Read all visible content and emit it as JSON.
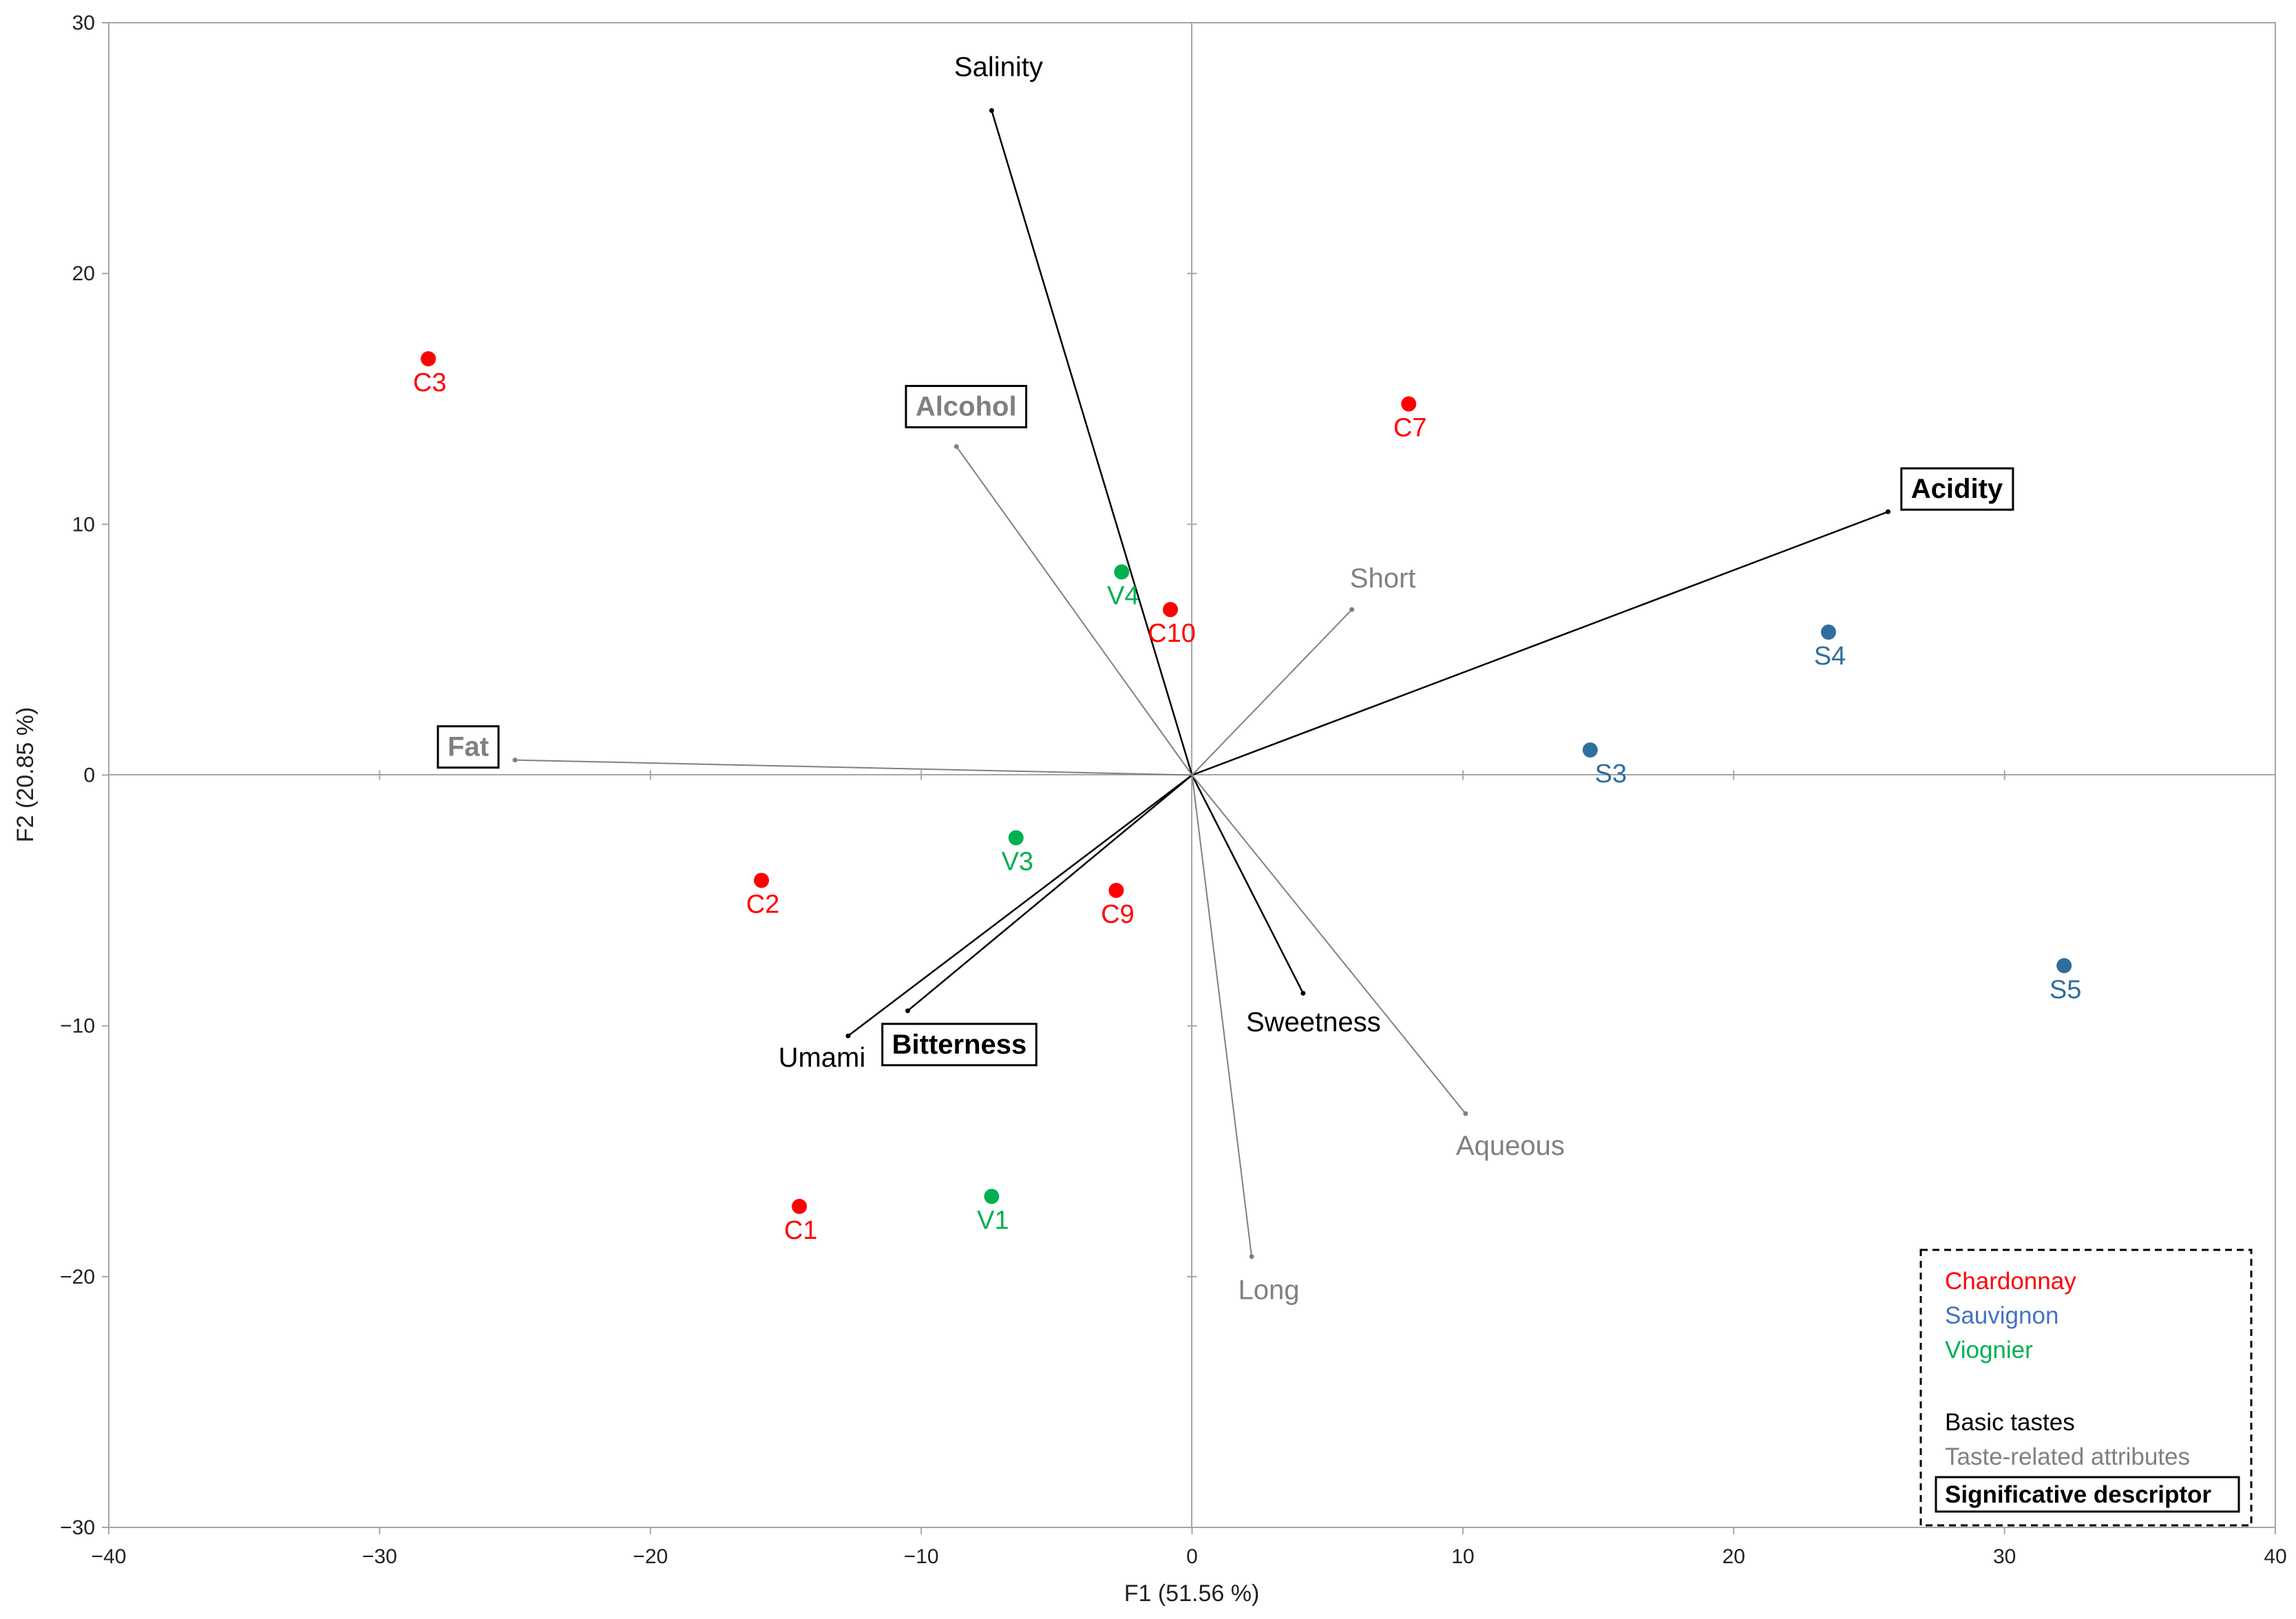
{
  "chart_data": {
    "type": "scatter",
    "xlabel": "F1 (51.56 %)",
    "ylabel": "F2 (20.85 %)",
    "xlim": [
      -40,
      40
    ],
    "ylim": [
      -30,
      30
    ],
    "xticks": [
      -40,
      -30,
      -20,
      -10,
      0,
      10,
      20,
      30,
      40
    ],
    "yticks": [
      -30,
      -20,
      -10,
      0,
      10,
      20,
      30
    ],
    "grid": false,
    "legend_position": "bottom-right",
    "colors": {
      "chardonnay": "#ff0000",
      "sauvignon": "#2e6f9e",
      "viognier": "#00b050",
      "basic": "#000000",
      "taste_related": "#808080"
    },
    "observations": [
      {
        "label": "C1",
        "group": "chardonnay",
        "x": -14.5,
        "y": -17.2
      },
      {
        "label": "C2",
        "group": "chardonnay",
        "x": -15.9,
        "y": -4.2
      },
      {
        "label": "C3",
        "group": "chardonnay",
        "x": -28.2,
        "y": 16.6
      },
      {
        "label": "C7",
        "group": "chardonnay",
        "x": 8.0,
        "y": 14.8
      },
      {
        "label": "C9",
        "group": "chardonnay",
        "x": -2.8,
        "y": -4.6
      },
      {
        "label": "C10",
        "group": "chardonnay",
        "x": -0.8,
        "y": 6.6
      },
      {
        "label": "S3",
        "group": "sauvignon",
        "x": 14.7,
        "y": 1.0
      },
      {
        "label": "S4",
        "group": "sauvignon",
        "x": 23.5,
        "y": 5.7
      },
      {
        "label": "S5",
        "group": "sauvignon",
        "x": 32.2,
        "y": -7.6
      },
      {
        "label": "V1",
        "group": "viognier",
        "x": -7.4,
        "y": -16.8
      },
      {
        "label": "V3",
        "group": "viognier",
        "x": -6.5,
        "y": -2.5
      },
      {
        "label": "V4",
        "group": "viognier",
        "x": -2.6,
        "y": 8.1
      }
    ],
    "variables": [
      {
        "label": "Salinity",
        "kind": "basic",
        "significant": false,
        "x": -7.4,
        "y": 26.5
      },
      {
        "label": "Acidity",
        "kind": "basic",
        "significant": true,
        "x": 25.7,
        "y": 10.5
      },
      {
        "label": "Sweetness",
        "kind": "basic",
        "significant": false,
        "x": 4.1,
        "y": -8.7
      },
      {
        "label": "Umami",
        "kind": "basic",
        "significant": false,
        "x": -12.7,
        "y": -10.4
      },
      {
        "label": "Bitterness",
        "kind": "basic",
        "significant": true,
        "x": -10.5,
        "y": -9.4
      },
      {
        "label": "Alcohol",
        "kind": "taste_related",
        "significant": true,
        "x": -8.7,
        "y": 13.1
      },
      {
        "label": "Fat",
        "kind": "taste_related",
        "significant": true,
        "x": -25.0,
        "y": 0.6
      },
      {
        "label": "Short",
        "kind": "taste_related",
        "significant": false,
        "x": 5.9,
        "y": 6.6
      },
      {
        "label": "Aqueous",
        "kind": "taste_related",
        "significant": false,
        "x": 10.1,
        "y": -13.5
      },
      {
        "label": "Long",
        "kind": "taste_related",
        "significant": false,
        "x": 2.2,
        "y": -19.2
      }
    ]
  },
  "legend": {
    "chardonnay": "Chardonnay",
    "sauvignon": "Sauvignon",
    "viognier": "Viognier",
    "basic": "Basic tastes",
    "taste_related": "Taste-related attributes",
    "significant": "Significative descriptor"
  }
}
